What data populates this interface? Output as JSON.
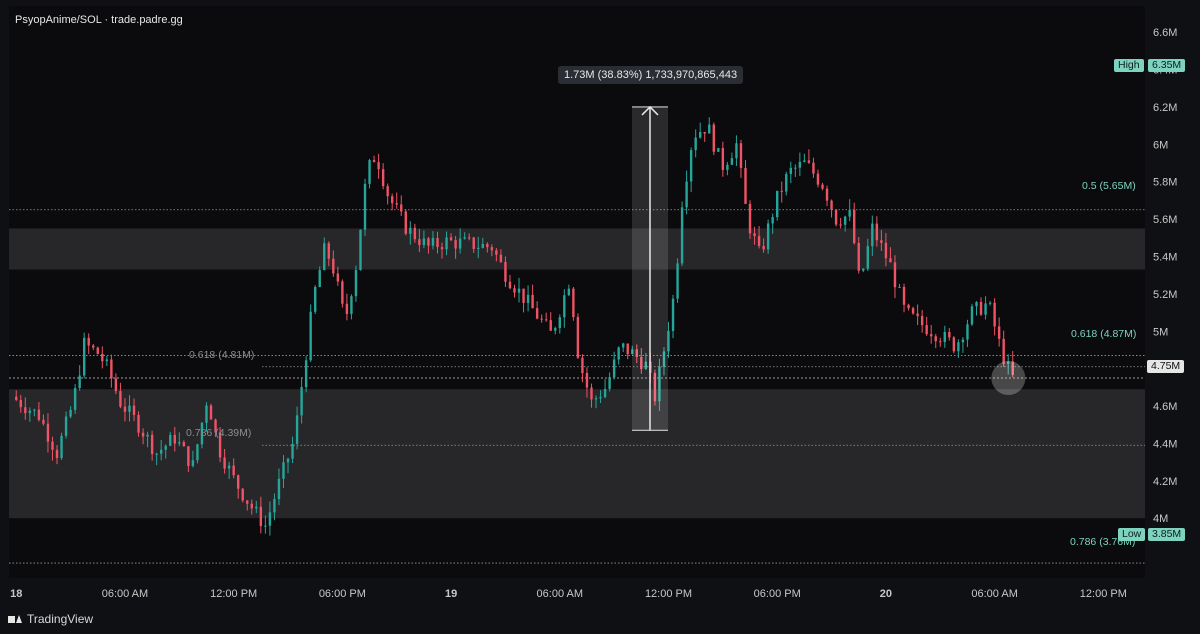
{
  "header": {
    "title": "PsyopAnime/SOL · trade.padre.gg"
  },
  "footer": {
    "brand": "TradingView"
  },
  "measure": {
    "tooltip": "1.73M (38.83%) 1,733,970,865,443"
  },
  "markers": {
    "high_label": "High",
    "high_value": "6.35M",
    "low_label": "Low",
    "low_value": "3.85M",
    "last_price": "4.75M"
  },
  "fib_levels": [
    {
      "label": "0.5 (5.65M)",
      "value": 5.65,
      "color": "#7dd3c0"
    },
    {
      "label": "0.618 (4.87M)",
      "value": 4.87,
      "color": "#7dd3c0"
    },
    {
      "label": "0.618 (4.81M)",
      "value": 4.81,
      "color": "#8a8d93"
    },
    {
      "label": "0.786 (4.39M)",
      "value": 4.39,
      "color": "#8a8d93"
    },
    {
      "label": "0.786 (3.76M)",
      "value": 3.76,
      "color": "#7dd3c0"
    }
  ],
  "zones": [
    {
      "from": 5.33,
      "to": 5.55
    },
    {
      "from": 4.0,
      "to": 4.69
    }
  ],
  "colors": {
    "up": "#26a69a",
    "down": "#ef5366",
    "grid_line": "#9a9a9a",
    "zone": "#2a2a2e",
    "accent": "#7dd3c0"
  },
  "chart_data": {
    "type": "candlestick",
    "title": "PsyopAnime/SOL",
    "y_ticks": [
      "4M",
      "4.2M",
      "4.4M",
      "4.6M",
      "4.8M",
      "5M",
      "5.2M",
      "5.4M",
      "5.6M",
      "5.8M",
      "6M",
      "6.2M",
      "6.4M",
      "6.6M"
    ],
    "y_range": [
      3.68,
      6.74
    ],
    "x_ticks": [
      "18",
      "06:00 AM",
      "12:00 PM",
      "06:00 PM",
      "19",
      "06:00 AM",
      "12:00 PM",
      "06:00 PM",
      "20",
      "06:00 AM",
      "12:00 PM"
    ],
    "x_range_hours": [
      -0.4,
      62.3
    ],
    "high": 6.35,
    "low": 3.85,
    "last": 4.75,
    "measure": {
      "from": 4.47,
      "to": 6.2,
      "change": "1.73M",
      "percent": "38.83%"
    },
    "price_path": [
      [
        0.0,
        4.65
      ],
      [
        1.5,
        4.55
      ],
      [
        2.5,
        4.35
      ],
      [
        3.4,
        4.62
      ],
      [
        4.0,
        4.93
      ],
      [
        4.8,
        4.88
      ],
      [
        5.3,
        4.8
      ],
      [
        6.0,
        4.62
      ],
      [
        7.0,
        4.5
      ],
      [
        8.0,
        4.35
      ],
      [
        9.0,
        4.43
      ],
      [
        10.0,
        4.28
      ],
      [
        10.8,
        4.65
      ],
      [
        11.4,
        4.38
      ],
      [
        12.3,
        4.2
      ],
      [
        13.3,
        4.05
      ],
      [
        14.0,
        3.96
      ],
      [
        14.8,
        4.2
      ],
      [
        15.6,
        4.42
      ],
      [
        16.2,
        4.85
      ],
      [
        16.7,
        5.2
      ],
      [
        17.3,
        5.45
      ],
      [
        17.8,
        5.32
      ],
      [
        18.4,
        5.05
      ],
      [
        19.0,
        5.35
      ],
      [
        19.6,
        5.85
      ],
      [
        20.1,
        5.95
      ],
      [
        20.8,
        5.72
      ],
      [
        21.8,
        5.55
      ],
      [
        23.0,
        5.45
      ],
      [
        24.0,
        5.48
      ],
      [
        25.0,
        5.47
      ],
      [
        26.5,
        5.45
      ],
      [
        27.3,
        5.3
      ],
      [
        28.5,
        5.15
      ],
      [
        29.8,
        4.98
      ],
      [
        30.8,
        5.28
      ],
      [
        31.3,
        4.85
      ],
      [
        32.0,
        4.62
      ],
      [
        32.8,
        4.7
      ],
      [
        33.6,
        4.92
      ],
      [
        34.3,
        4.88
      ],
      [
        35.0,
        4.82
      ],
      [
        35.5,
        4.65
      ],
      [
        36.1,
        4.95
      ],
      [
        36.6,
        5.22
      ],
      [
        37.0,
        5.7
      ],
      [
        37.6,
        6.05
      ],
      [
        38.4,
        6.1
      ],
      [
        39.2,
        5.88
      ],
      [
        40.0,
        6.0
      ],
      [
        40.6,
        5.6
      ],
      [
        41.3,
        5.4
      ],
      [
        42.2,
        5.7
      ],
      [
        42.9,
        5.85
      ],
      [
        43.8,
        5.9
      ],
      [
        44.8,
        5.78
      ],
      [
        45.5,
        5.6
      ],
      [
        46.3,
        5.62
      ],
      [
        46.8,
        5.25
      ],
      [
        47.5,
        5.55
      ],
      [
        48.5,
        5.35
      ],
      [
        49.3,
        5.1
      ],
      [
        50.0,
        5.05
      ],
      [
        51.2,
        4.98
      ],
      [
        52.1,
        4.92
      ],
      [
        53.0,
        5.1
      ],
      [
        53.9,
        5.15
      ],
      [
        54.6,
        4.9
      ],
      [
        55.2,
        4.75
      ]
    ]
  }
}
